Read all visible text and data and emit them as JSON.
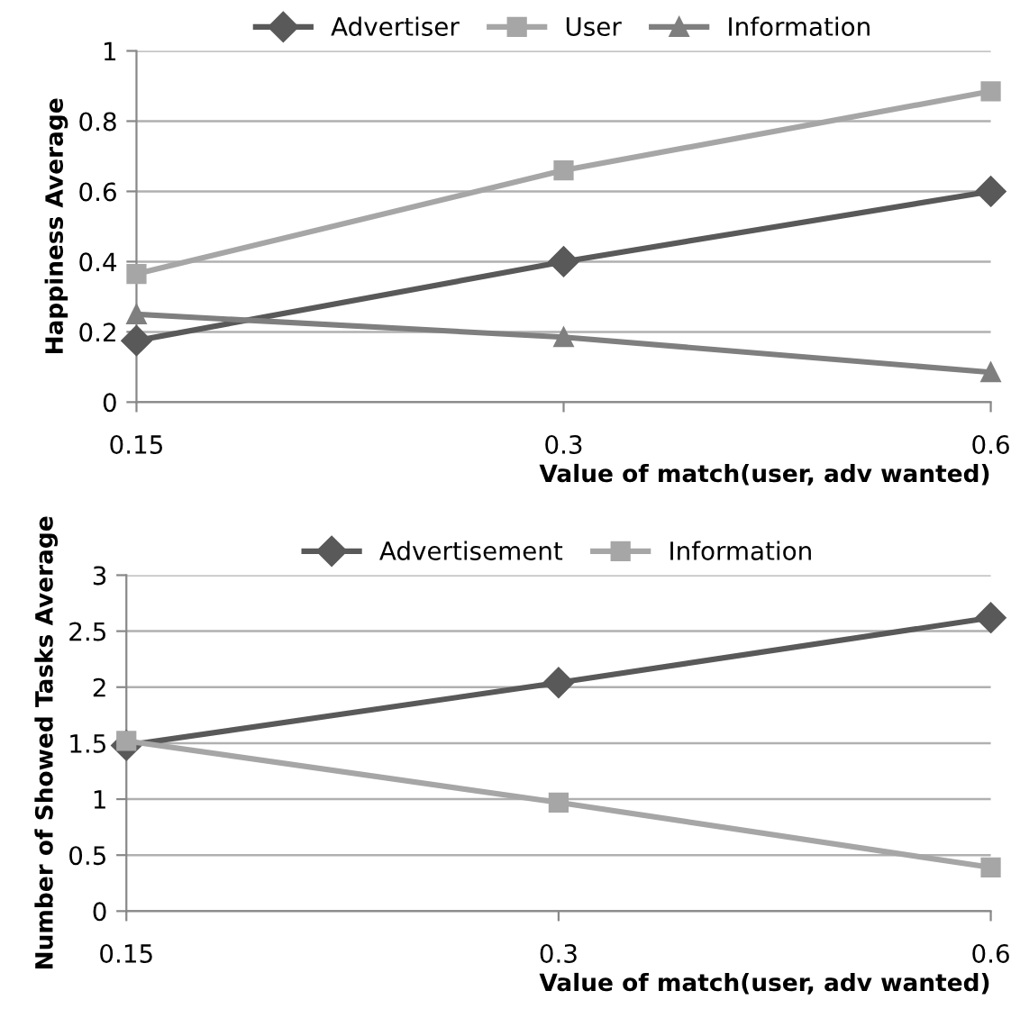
{
  "chart_data": [
    {
      "type": "line",
      "categories": [
        "0.15",
        "0.3",
        "0.6"
      ],
      "xlabel": "Value of match(user, adv wanted)",
      "ylabel": "Happiness Average",
      "ylim": [
        0,
        1
      ],
      "yticks": [
        0,
        0.2,
        0.4,
        0.6,
        0.8,
        1
      ],
      "grid": "y",
      "legend": "top",
      "series": [
        {
          "name": "Advertiser",
          "color": "#595959",
          "marker": "diamond",
          "values": [
            0.175,
            0.4,
            0.6
          ]
        },
        {
          "name": "User",
          "color": "#a6a6a6",
          "marker": "square",
          "values": [
            0.365,
            0.66,
            0.885
          ]
        },
        {
          "name": "Information",
          "color": "#7f7f7f",
          "marker": "triangle",
          "values": [
            0.25,
            0.185,
            0.085
          ]
        }
      ]
    },
    {
      "type": "line",
      "categories": [
        "0.15",
        "0.3",
        "0.6"
      ],
      "xlabel": "Value of match(user, adv wanted)",
      "ylabel": "Number of Showed Tasks Average",
      "ylim": [
        0,
        3
      ],
      "yticks": [
        0,
        0.5,
        1,
        1.5,
        2,
        2.5,
        3
      ],
      "grid": "y",
      "legend": "top",
      "series": [
        {
          "name": "Advertisement",
          "color": "#595959",
          "marker": "diamond",
          "values": [
            1.48,
            2.04,
            2.62
          ]
        },
        {
          "name": "Information",
          "color": "#a6a6a6",
          "marker": "square",
          "values": [
            1.52,
            0.97,
            0.39
          ]
        }
      ]
    }
  ]
}
